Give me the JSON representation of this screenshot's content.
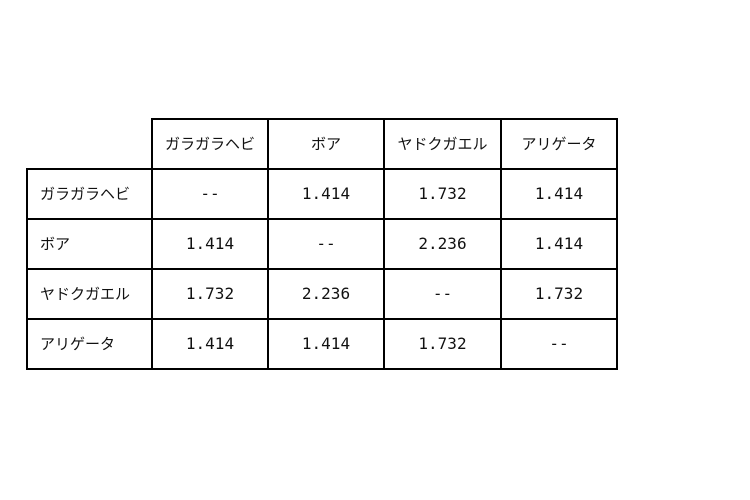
{
  "table": {
    "columns": [
      "ガラガラヘビ",
      "ボア",
      "ヤドクガエル",
      "アリゲータ"
    ],
    "rows": [
      {
        "label": "ガラガラヘビ",
        "values": [
          "--",
          "1.414",
          "1.732",
          "1.414"
        ]
      },
      {
        "label": "ボア",
        "values": [
          "1.414",
          "--",
          "2.236",
          "1.414"
        ]
      },
      {
        "label": "ヤドクガエル",
        "values": [
          "1.732",
          "2.236",
          "--",
          "1.732"
        ]
      },
      {
        "label": "アリゲータ",
        "values": [
          "1.414",
          "1.414",
          "1.732",
          "--"
        ]
      }
    ]
  }
}
